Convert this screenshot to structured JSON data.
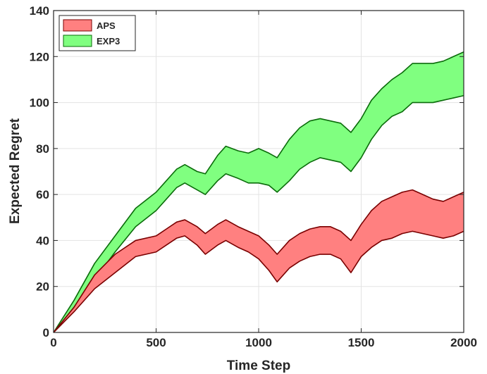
{
  "chart_data": {
    "type": "area",
    "xlabel": "Time Step",
    "ylabel": "Expected Regret",
    "xlim": [
      0,
      2000
    ],
    "ylim": [
      0,
      140
    ],
    "xticks": [
      0,
      500,
      1000,
      1500,
      2000
    ],
    "yticks": [
      0,
      20,
      40,
      60,
      80,
      100,
      120,
      140
    ],
    "grid": true,
    "legend_position": "top-left",
    "series": [
      {
        "name": "EXP3",
        "fill": "#80ff80",
        "edge": "#0a6b0a",
        "x": [
          0,
          100,
          200,
          300,
          400,
          500,
          550,
          600,
          640,
          700,
          740,
          800,
          840,
          900,
          950,
          1000,
          1050,
          1090,
          1150,
          1200,
          1250,
          1300,
          1350,
          1400,
          1450,
          1500,
          1550,
          1600,
          1650,
          1700,
          1750,
          1800,
          1850,
          1900,
          1950,
          2000
        ],
        "upper": [
          0,
          14,
          30,
          42,
          54,
          61,
          66,
          71,
          73,
          70,
          69,
          77,
          81,
          79,
          78,
          80,
          78,
          76,
          84,
          89,
          92,
          93,
          92,
          91,
          87,
          93,
          101,
          106,
          110,
          113,
          117,
          117,
          117,
          118,
          120,
          122
        ],
        "lower": [
          0,
          11,
          23,
          35,
          46,
          53,
          58,
          63,
          65,
          62,
          60,
          66,
          69,
          67,
          65,
          65,
          64,
          61,
          66,
          71,
          74,
          76,
          75,
          74,
          70,
          76,
          84,
          90,
          94,
          96,
          100,
          100,
          100,
          101,
          102,
          103
        ]
      },
      {
        "name": "APS",
        "fill": "#ff8080",
        "edge": "#7a0000",
        "x": [
          0,
          100,
          200,
          300,
          400,
          500,
          550,
          600,
          640,
          700,
          740,
          800,
          840,
          900,
          950,
          1000,
          1050,
          1090,
          1150,
          1200,
          1250,
          1300,
          1350,
          1400,
          1450,
          1500,
          1550,
          1600,
          1650,
          1700,
          1750,
          1800,
          1850,
          1900,
          1950,
          2000
        ],
        "upper": [
          0,
          11,
          25,
          34,
          40,
          42,
          45,
          48,
          49,
          46,
          43,
          47,
          49,
          46,
          44,
          42,
          38,
          34,
          40,
          43,
          45,
          46,
          46,
          44,
          40,
          47,
          53,
          57,
          59,
          61,
          62,
          60,
          58,
          57,
          59,
          61
        ],
        "lower": [
          0,
          9,
          19,
          26,
          33,
          35,
          38,
          41,
          42,
          38,
          34,
          38,
          40,
          37,
          35,
          32,
          27,
          22,
          28,
          31,
          33,
          34,
          34,
          32,
          26,
          33,
          37,
          40,
          41,
          43,
          44,
          43,
          42,
          41,
          42,
          44
        ]
      }
    ]
  }
}
